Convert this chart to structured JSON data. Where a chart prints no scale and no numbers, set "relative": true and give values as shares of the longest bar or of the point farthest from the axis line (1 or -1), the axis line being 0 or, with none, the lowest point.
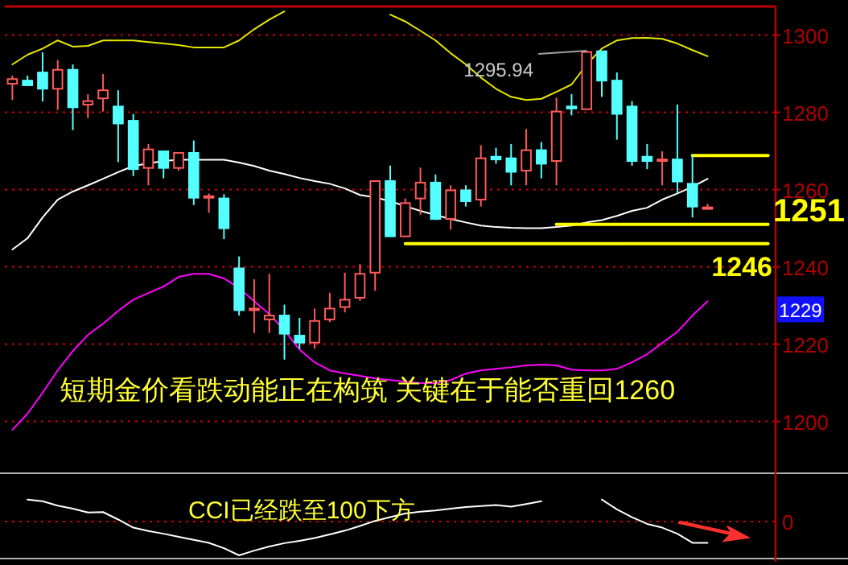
{
  "chart_data": [
    {
      "type": "candlestick",
      "categories": [
        null,
        null,
        null,
        null,
        null,
        null,
        null,
        null,
        null,
        null,
        null,
        null,
        null,
        null,
        null,
        null,
        null,
        null,
        null,
        null,
        null,
        null,
        null,
        null,
        null,
        null,
        null,
        null,
        null,
        null,
        null,
        null,
        null,
        null,
        null,
        null,
        null,
        null,
        null,
        null,
        null,
        null,
        null,
        null,
        null,
        null,
        null,
        null,
        null,
        null,
        null
      ],
      "ohlc": [
        [
          1287.4,
          1289.5,
          1283.2,
          1288.6
        ],
        [
          1288.2,
          1289.5,
          1287.0,
          1287.0
        ],
        [
          1290.3,
          1295.5,
          1282.8,
          1286.1
        ],
        [
          1286.1,
          1293.5,
          1280.6,
          1291.0
        ],
        [
          1291.0,
          1292.4,
          1275.4,
          1281.3
        ],
        [
          1282.0,
          1284.7,
          1278.5,
          1282.9
        ],
        [
          1283.6,
          1289.9,
          1280.2,
          1285.7
        ],
        [
          1281.5,
          1285.7,
          1267.1,
          1277.1
        ],
        [
          1277.8,
          1279.6,
          1263.5,
          1265.3
        ],
        [
          1265.6,
          1271.8,
          1261.1,
          1270.4
        ],
        [
          1269.9,
          1269.9,
          1262.9,
          1265.6
        ],
        [
          1265.6,
          1269.5,
          1264.9,
          1269.5
        ],
        [
          1269.5,
          1272.7,
          1256.0,
          1257.9
        ],
        [
          1258.0,
          1259.0,
          1254.0,
          1258.3
        ],
        [
          1257.7,
          1258.8,
          1247.2,
          1250.0
        ],
        [
          1239.6,
          1242.7,
          1227.4,
          1228.8
        ],
        [
          1228.8,
          1236.8,
          1222.9,
          1229.2
        ],
        [
          1226.4,
          1238.2,
          1222.9,
          1227.4
        ],
        [
          1227.4,
          1230.2,
          1216.0,
          1222.7
        ],
        [
          1222.2,
          1226.8,
          1218.8,
          1220.4
        ],
        [
          1220.4,
          1229.2,
          1218.8,
          1226.0
        ],
        [
          1226.4,
          1233.3,
          1225.7,
          1229.2
        ],
        [
          1229.6,
          1238.5,
          1228.2,
          1231.5
        ],
        [
          1232.0,
          1240.7,
          1231.2,
          1238.2
        ],
        [
          1238.5,
          1262.2,
          1233.8,
          1262.2
        ],
        [
          1262.2,
          1266.2,
          1247.9,
          1247.9
        ],
        [
          1247.9,
          1257.7,
          1247.9,
          1256.5
        ],
        [
          1257.7,
          1265.7,
          1253.5,
          1261.8
        ],
        [
          1261.8,
          1263.9,
          1252.1,
          1252.4
        ],
        [
          1252.4,
          1261.1,
          1249.6,
          1259.8
        ],
        [
          1259.8,
          1261.1,
          1255.6,
          1257.0
        ],
        [
          1257.4,
          1271.5,
          1255.6,
          1268.1
        ],
        [
          1268.5,
          1270.8,
          1266.7,
          1267.8
        ],
        [
          1268.1,
          1271.8,
          1261.1,
          1264.6
        ],
        [
          1264.9,
          1275.7,
          1261.1,
          1270.2
        ],
        [
          1270.2,
          1272.3,
          1262.9,
          1266.7
        ],
        [
          1267.4,
          1283.8,
          1261.1,
          1280.2
        ],
        [
          1281.5,
          1284.7,
          1279.2,
          1281.0
        ],
        [
          1280.8,
          1295.94,
          1280.8,
          1295.6
        ],
        [
          1295.8,
          1295.9,
          1284.0,
          1288.2
        ],
        [
          1288.2,
          1290.3,
          1272.9,
          1279.6
        ],
        [
          1281.5,
          1282.9,
          1266.2,
          1267.4
        ],
        [
          1268.5,
          1271.8,
          1265.3,
          1267.4
        ],
        [
          1267.6,
          1269.9,
          1261.1,
          1267.8
        ],
        [
          1267.8,
          1282.0,
          1259.0,
          1262.1
        ],
        [
          1261.5,
          1268.8,
          1252.8,
          1255.6
        ],
        [
          1255.2,
          1256.3,
          1255.2,
          1255.4
        ],
        null,
        null,
        null,
        null
      ],
      "colors": [
        "#ff5a5a",
        "#54ffff",
        "#54ffff",
        "#ff5a5a",
        "#54ffff",
        "#ff5a5a",
        "#ff5a5a",
        "#54ffff",
        "#54ffff",
        "#ff5a5a",
        "#54ffff",
        "#ff5a5a",
        "#54ffff",
        "#ff5a5a",
        "#54ffff",
        "#54ffff",
        "#ff5a5a",
        "#ff5a5a",
        "#54ffff",
        "#54ffff",
        "#ff5a5a",
        "#ff5a5a",
        "#ff5a5a",
        "#ff5a5a",
        "#ff5a5a",
        "#54ffff",
        "#ff5a5a",
        "#ff5a5a",
        "#54ffff",
        "#ff5a5a",
        "#54ffff",
        "#ff5a5a",
        "#54ffff",
        "#54ffff",
        "#ff5a5a",
        "#54ffff",
        "#ff5a5a",
        "#54ffff",
        "#ff5a5a",
        "#54ffff",
        "#54ffff",
        "#54ffff",
        "#54ffff",
        "#ff5a5a",
        "#54ffff",
        "#54ffff",
        "#ff5a5a",
        null,
        null,
        null,
        null
      ],
      "series": [
        {
          "type": "line",
          "color": "#e6e600",
          "values": [
            1292.4,
            1294.9,
            1296.5,
            1298.6,
            1297.0,
            1297.2,
            1298.6,
            1298.6,
            1298.6,
            1298.2,
            1297.8,
            1297.4,
            1296.8,
            1296.8,
            1296.8,
            1298.6,
            1301.5,
            1304.0,
            1306.1,
            null,
            null,
            null,
            null,
            null,
            null,
            1305.3,
            1303.5,
            1301.1,
            1298.6,
            1295.3,
            1292.4,
            1289.0,
            1286.1,
            1284.0,
            1283.2,
            1283.5,
            1285.3,
            1287.2,
            1292.4,
            1296.5,
            1298.6,
            1299.2,
            1299.3,
            1299.0,
            1297.8,
            1296.1,
            1294.5,
            null,
            null,
            null,
            null
          ]
        },
        {
          "type": "line",
          "color": "#ffffff",
          "values": [
            1244.5,
            1247.4,
            1252.8,
            1257.4,
            1259.5,
            1261.1,
            1262.8,
            1264.5,
            1266.1,
            1266.8,
            1267.4,
            1267.7,
            1267.7,
            1267.7,
            1267.7,
            1267.0,
            1266.1,
            1264.9,
            1264.0,
            1263.0,
            1262.2,
            1261.5,
            1260.3,
            1258.6,
            1258.0,
            1257.0,
            1255.7,
            1254.5,
            1253.4,
            1252.4,
            1251.5,
            1250.7,
            1250.3,
            1250.1,
            1250.0,
            1250.0,
            1250.3,
            1250.7,
            1251.5,
            1252.1,
            1253.2,
            1254.5,
            1255.3,
            1257.4,
            1259.0,
            1260.7,
            1262.8,
            null,
            null,
            null,
            null
          ]
        },
        {
          "type": "line",
          "color": "#ff00ff",
          "values": [
            1197.8,
            1202.0,
            1207.4,
            1213.2,
            1218.2,
            1222.4,
            1225.3,
            1228.6,
            1231.5,
            1233.2,
            1234.9,
            1237.4,
            1238.2,
            1238.2,
            1237.0,
            1234.5,
            1231.1,
            1227.8,
            1223.6,
            1218.6,
            1215.3,
            1213.2,
            1212.4,
            1211.8,
            1211.1,
            1210.7,
            1210.3,
            1209.9,
            1209.9,
            1210.7,
            1212.4,
            1213.2,
            1213.6,
            1214.0,
            1214.5,
            1214.7,
            1214.5,
            1213.4,
            1213.2,
            1213.2,
            1213.6,
            1215.3,
            1217.4,
            1220.3,
            1223.2,
            1227.4,
            1231.1,
            null,
            null,
            null,
            null
          ]
        },
        {
          "type": "line",
          "color": "#ffff00",
          "values": [
            null,
            null,
            null,
            null,
            null,
            null,
            null,
            null,
            null,
            null,
            null,
            null,
            null,
            null,
            null,
            null,
            null,
            null,
            null,
            null,
            null,
            null,
            null,
            null,
            null,
            null,
            1246,
            1246,
            1246,
            1246,
            1246,
            1246,
            1246,
            1246,
            1246,
            1246,
            1246,
            1246,
            1246,
            1246,
            1246,
            1246,
            1246,
            1246,
            1246,
            1246,
            1246,
            1246,
            1246,
            1246,
            1246
          ]
        },
        {
          "type": "line",
          "color": "#ffff00",
          "values": [
            null,
            null,
            null,
            null,
            null,
            null,
            null,
            null,
            null,
            null,
            null,
            null,
            null,
            null,
            null,
            null,
            null,
            null,
            null,
            null,
            null,
            null,
            null,
            null,
            null,
            null,
            null,
            null,
            null,
            null,
            null,
            null,
            null,
            null,
            null,
            null,
            1251,
            1251,
            1251,
            1251,
            1251,
            1251,
            1251,
            1251,
            1251,
            1251,
            1251,
            1251,
            1251,
            1251,
            1251
          ]
        },
        {
          "type": "line",
          "color": "#ffff00",
          "values": [
            null,
            null,
            null,
            null,
            null,
            null,
            null,
            null,
            null,
            null,
            null,
            null,
            null,
            null,
            null,
            null,
            null,
            null,
            null,
            null,
            null,
            null,
            null,
            null,
            null,
            null,
            null,
            null,
            null,
            null,
            null,
            null,
            null,
            null,
            null,
            null,
            null,
            null,
            null,
            null,
            null,
            null,
            null,
            null,
            null,
            1268.8,
            1268.8,
            1268.8,
            1268.8,
            1268.8,
            1268.8
          ]
        }
      ],
      "ylim": [
        1187,
        1307.4
      ],
      "yticks": [
        1200,
        1220,
        1240,
        1260,
        1280,
        1300
      ],
      "grid": "y",
      "tick_labels": "y",
      "annotations": [
        "1295.94",
        "1251",
        "1246",
        {
          "text": "1229",
          "y": 1229
        },
        "短期金价看跌动能正在构筑 关键在于能否重回1260"
      ]
    },
    {
      "type": "line",
      "relative": true,
      "categories": [
        null,
        null,
        null,
        null,
        null,
        null,
        null,
        null,
        null,
        null,
        null,
        null,
        null,
        null,
        null,
        null,
        null,
        null,
        null,
        null,
        null,
        null,
        null,
        null,
        null,
        null,
        null,
        null,
        null,
        null,
        null,
        null,
        null,
        null,
        null,
        null,
        null,
        null,
        null,
        null,
        null,
        null,
        null,
        null,
        null,
        null,
        null,
        null,
        null,
        null,
        null
      ],
      "series": [
        {
          "color": "#ffffff",
          "values": [
            null,
            0.65,
            0.6,
            0.47,
            0.38,
            0.27,
            0.28,
            0.06,
            -0.18,
            -0.28,
            -0.36,
            -0.45,
            -0.54,
            -0.63,
            -0.79,
            -1,
            -0.86,
            -0.74,
            -0.64,
            -0.57,
            -0.49,
            -0.38,
            -0.27,
            -0.13,
            0.02,
            0.13,
            0.24,
            0.29,
            0.33,
            0.38,
            0.43,
            0.46,
            0.49,
            0.44,
            0.52,
            0.6,
            null,
            null,
            null,
            0.65,
            0.36,
            0.13,
            -0.07,
            -0.18,
            -0.36,
            -0.63,
            -0.63,
            null,
            null,
            null,
            null
          ]
        }
      ],
      "ref_lines": [
        {
          "axis": "y",
          "value": 0,
          "label": "0",
          "color": "#d00000",
          "line_style": "dotted"
        }
      ],
      "tick_labels": false,
      "annotations": [
        "CCI已经跌至100下方"
      ]
    }
  ]
}
